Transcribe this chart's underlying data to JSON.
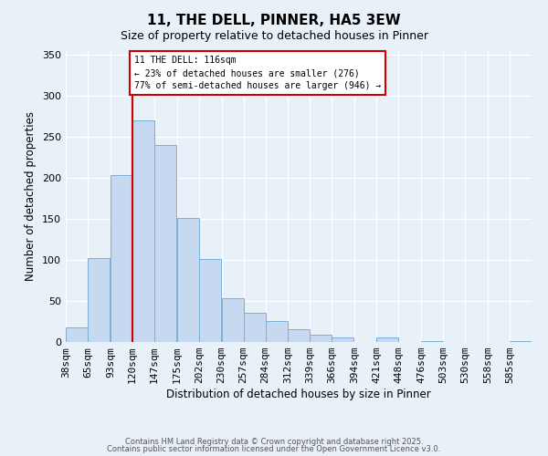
{
  "title": "11, THE DELL, PINNER, HA5 3EW",
  "subtitle": "Size of property relative to detached houses in Pinner",
  "xlabel": "Distribution of detached houses by size in Pinner",
  "ylabel": "Number of detached properties",
  "bar_labels": [
    "38sqm",
    "65sqm",
    "93sqm",
    "120sqm",
    "147sqm",
    "175sqm",
    "202sqm",
    "230sqm",
    "257sqm",
    "284sqm",
    "312sqm",
    "339sqm",
    "366sqm",
    "394sqm",
    "421sqm",
    "448sqm",
    "476sqm",
    "503sqm",
    "530sqm",
    "558sqm",
    "585sqm"
  ],
  "bar_values": [
    18,
    102,
    203,
    270,
    240,
    151,
    101,
    53,
    35,
    26,
    15,
    9,
    6,
    0,
    5,
    0,
    1,
    0,
    0,
    0,
    1
  ],
  "bar_color": "#c6d9f0",
  "bar_edge_color": "#7bafd4",
  "bg_color": "#e8f0f8",
  "grid_color": "#ffffff",
  "annotation_title": "11 THE DELL: 116sqm",
  "annotation_line1": "← 23% of detached houses are smaller (276)",
  "annotation_line2": "77% of semi-detached houses are larger (946) →",
  "annotation_box_color": "#ffffff",
  "annotation_box_edge": "#cc0000",
  "vline_color": "#cc0000",
  "ylim": [
    0,
    355
  ],
  "footer1": "Contains HM Land Registry data © Crown copyright and database right 2025.",
  "footer2": "Contains public sector information licensed under the Open Government Licence v3.0.",
  "bin_starts": [
    38,
    65,
    93,
    120,
    147,
    175,
    202,
    230,
    257,
    284,
    312,
    339,
    366,
    394,
    421,
    448,
    476,
    503,
    530,
    558,
    585
  ],
  "bin_width": 27,
  "vline_pos": 120
}
